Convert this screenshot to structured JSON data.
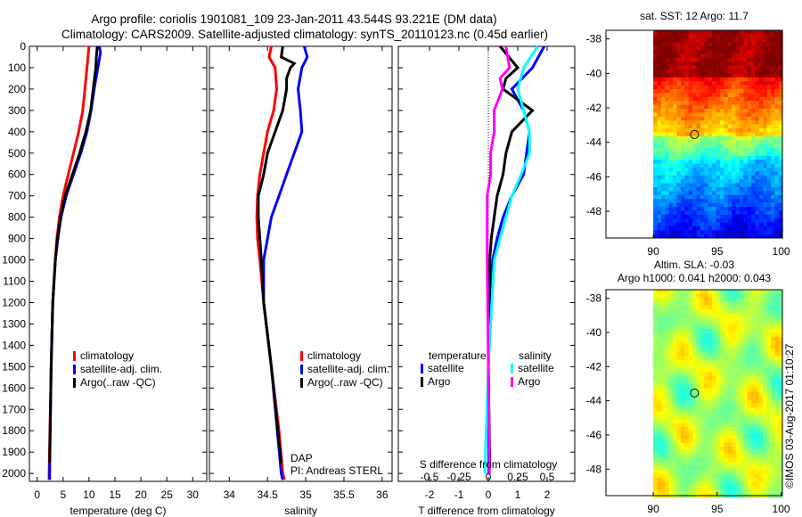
{
  "title": {
    "line1": "Argo profile: coriolis 1901081_109 23-Jan-2011 43.544S 93.221E (DM data)",
    "line2": "Climatology: CARS2009. Satellite-adjusted climatology: synTS_20110123.nc (0.45d earlier)"
  },
  "copyright": "©IMOS 03-Aug-2017 01:10:27",
  "colors": {
    "climatology": "#ff0000",
    "satellite": "#0000ff",
    "argo": "#000000",
    "s_satellite": "#00ffff",
    "s_argo": "#ff00ff"
  },
  "chart_data": [
    {
      "type": "line",
      "name": "temperature",
      "xlabel": "temperature (deg C)",
      "ylabel": "",
      "xlim": [
        -1.5,
        32.7
      ],
      "ylim": [
        0,
        2037
      ],
      "y_reversed": true,
      "xticks": [
        0,
        5,
        10,
        15,
        20,
        25,
        30
      ],
      "yticks": [
        0,
        100,
        200,
        300,
        400,
        500,
        600,
        700,
        800,
        900,
        1000,
        1100,
        1200,
        1300,
        1400,
        1500,
        1600,
        1700,
        1800,
        1900,
        2000
      ],
      "legend": [
        "climatology",
        "satellite-adj. clim.",
        "Argo(..raw -QC)"
      ],
      "series": [
        {
          "name": "climatology",
          "color": "#ff0000",
          "depth": [
            0,
            100,
            200,
            300,
            400,
            500,
            600,
            700,
            800,
            900,
            1000,
            1200,
            1500,
            2000,
            2030
          ],
          "values": [
            10,
            9.6,
            9.2,
            8.8,
            8,
            7,
            6,
            5,
            4.3,
            3.8,
            3.5,
            3,
            2.7,
            2.3,
            2.3
          ]
        },
        {
          "name": "satellite-adj. clim.",
          "color": "#0000ff",
          "depth": [
            0,
            30,
            100,
            200,
            300,
            400,
            500,
            600,
            700,
            800,
            900,
            1000,
            1200,
            1500,
            2000,
            2030
          ],
          "values": [
            12,
            12.2,
            11.7,
            11,
            10.4,
            9.6,
            8.4,
            7,
            5.6,
            4.6,
            4,
            3.5,
            3,
            2.7,
            2.4,
            2.4
          ]
        },
        {
          "name": "Argo(..raw -QC)",
          "color": "#000000",
          "depth": [
            0,
            50,
            100,
            200,
            300,
            400,
            500,
            600,
            700,
            800,
            900,
            1000,
            1200,
            1500,
            1950
          ],
          "values": [
            11.6,
            11.4,
            11.3,
            10.8,
            10.3,
            9.4,
            8.2,
            6.8,
            5.4,
            4.5,
            3.9,
            3.5,
            3,
            2.7,
            2.4
          ]
        }
      ]
    },
    {
      "type": "line",
      "name": "salinity",
      "xlabel": "salinity",
      "ylabel": "",
      "xlim": [
        33.74,
        36.13
      ],
      "ylim": [
        0,
        2037
      ],
      "y_reversed": true,
      "xticks": [
        34,
        34.5,
        35,
        35.5,
        36
      ],
      "legend": [
        "climatology",
        "satellite-adj. clim.",
        "Argo(..raw -QC)"
      ],
      "annotation": {
        "line1": "DAP",
        "line2": "PI: Andreas STERL"
      },
      "series": [
        {
          "name": "climatology",
          "color": "#ff0000",
          "depth": [
            0,
            50,
            100,
            200,
            300,
            400,
            500,
            600,
            700,
            800,
            900,
            1000,
            1200,
            1500,
            1800,
            2000,
            2030
          ],
          "values": [
            34.55,
            34.52,
            34.6,
            34.62,
            34.58,
            34.5,
            34.45,
            34.4,
            34.37,
            34.36,
            34.37,
            34.4,
            34.45,
            34.55,
            34.65,
            34.7,
            34.72
          ]
        },
        {
          "name": "satellite-adj. clim.",
          "color": "#0000ff",
          "depth": [
            0,
            50,
            100,
            200,
            300,
            400,
            500,
            600,
            700,
            800,
            900,
            1000,
            1200,
            1500,
            2000,
            2030
          ],
          "values": [
            34.98,
            35.02,
            34.95,
            34.9,
            34.93,
            34.95,
            34.85,
            34.75,
            34.65,
            34.55,
            34.5,
            34.45,
            34.45,
            34.55,
            34.68,
            34.7
          ]
        },
        {
          "name": "Argo(..raw -QC)",
          "color": "#000000",
          "depth": [
            0,
            50,
            80,
            100,
            150,
            200,
            300,
            400,
            500,
            600,
            700,
            800,
            900,
            1000,
            1200,
            1500,
            1950
          ],
          "values": [
            34.7,
            34.68,
            34.85,
            34.8,
            34.75,
            34.75,
            34.7,
            34.6,
            34.5,
            34.45,
            34.38,
            34.38,
            34.4,
            34.42,
            34.45,
            34.55,
            34.68
          ]
        }
      ]
    },
    {
      "type": "line",
      "name": "difference",
      "xlabel": "T difference from climatology",
      "xlabel2": "S difference from climatology",
      "xlim": [
        -3.06,
        2.94
      ],
      "ylim": [
        0,
        2037
      ],
      "y_reversed": true,
      "xticks": [
        -2,
        -1,
        0,
        1,
        2
      ],
      "xticks2": [
        -0.5,
        -0.25,
        0,
        0.25,
        0.5
      ],
      "s_scale": 4,
      "legend": {
        "temperature_title": "temperature",
        "salinity_title": "salinity",
        "items": [
          "satellite",
          "Argo",
          "satellite",
          "Argo"
        ]
      },
      "series": [
        {
          "name": "T satellite",
          "color": "#0000ff",
          "unit": "T",
          "depth": [
            0,
            100,
            200,
            300,
            400,
            500,
            600,
            700,
            800,
            900,
            1000,
            1200,
            1500,
            2000
          ],
          "values": [
            1.9,
            1.5,
            0.8,
            1.2,
            1.4,
            1.3,
            1.2,
            0.8,
            0.5,
            0.3,
            0.15,
            0.05,
            0,
            0.02
          ]
        },
        {
          "name": "T Argo",
          "color": "#000000",
          "unit": "T",
          "depth": [
            0,
            50,
            100,
            150,
            200,
            300,
            400,
            500,
            600,
            700,
            800,
            900,
            1000,
            1500,
            1950
          ],
          "values": [
            0.4,
            0.7,
            1.0,
            0.6,
            0.5,
            1.5,
            0.8,
            0.6,
            0.5,
            0.3,
            0.2,
            0.1,
            0.05,
            0,
            0.05
          ]
        },
        {
          "name": "S satellite",
          "color": "#00ffff",
          "unit": "S",
          "depth": [
            0,
            100,
            200,
            300,
            400,
            500,
            600,
            700,
            800,
            900,
            1000,
            1500,
            2000
          ],
          "values": [
            0.42,
            0.3,
            0.25,
            0.3,
            0.35,
            0.35,
            0.28,
            0.2,
            0.15,
            0.1,
            0.05,
            0,
            -0.03
          ]
        },
        {
          "name": "S Argo",
          "color": "#ff00ff",
          "unit": "S",
          "depth": [
            0,
            100,
            150,
            200,
            300,
            400,
            500,
            600,
            700,
            1000,
            1500,
            2000
          ],
          "values": [
            0.15,
            0.18,
            0.1,
            0.12,
            0.05,
            0.05,
            0.02,
            0.02,
            -0.01,
            -0.01,
            0,
            0.01
          ]
        }
      ]
    },
    {
      "type": "heatmap",
      "name": "sst-map",
      "title": "sat. SST: 12 Argo: 11.7",
      "xlim": [
        86.3,
        100.1
      ],
      "ylim": [
        -49.55,
        -37.5
      ],
      "data_lon_min": 90,
      "xticks": [
        90,
        95,
        100
      ],
      "yticks": [
        -38,
        -40,
        -42,
        -44,
        -46,
        -48
      ],
      "marker": {
        "lon": 93.221,
        "lat": -43.544
      }
    },
    {
      "type": "heatmap",
      "name": "sla-map",
      "title": "Altim. SLA: -0.03",
      "subtitle": "Argo h1000: 0.041 h2000: 0.043",
      "xlim": [
        86.3,
        100.1
      ],
      "ylim": [
        -49.55,
        -37.5
      ],
      "data_lon_min": 90,
      "xticks": [
        90,
        95,
        100
      ],
      "yticks": [
        -38,
        -40,
        -42,
        -44,
        -46,
        -48
      ],
      "marker": {
        "lon": 93.221,
        "lat": -43.544
      }
    }
  ]
}
